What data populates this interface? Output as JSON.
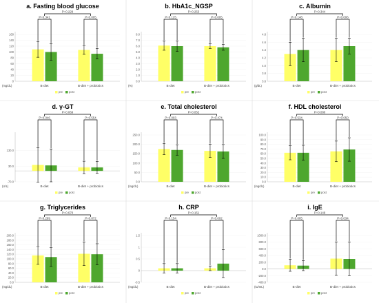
{
  "colors": {
    "pre": "#ffff66",
    "post": "#4ea72e"
  },
  "legend": {
    "pre": "pre",
    "post": "post"
  },
  "chart_data": [
    {
      "type": "bar",
      "title": "a. Fasting blood glucose",
      "unit": "(mg/dL)",
      "categories": [
        "B-diet",
        "B-diet + probiotics"
      ],
      "yticks": [
        "0",
        "20",
        "40",
        "60",
        "80",
        "100",
        "120",
        "140",
        "160"
      ],
      "ylim": [
        0,
        160
      ],
      "series": [
        {
          "name": "pre",
          "values": [
            109,
            107
          ],
          "errors": [
            27,
            15
          ]
        },
        {
          "name": "post",
          "values": [
            100,
            94
          ],
          "errors": [
            28,
            18
          ]
        }
      ],
      "pvalues": {
        "within": [
          "P=0.341",
          "P=0.005"
        ],
        "between": "P=0.229"
      }
    },
    {
      "type": "bar",
      "title": "b. HbA1c_NGSP",
      "unit": "(%)",
      "categories": [
        "B-diet",
        "B-diet + probiotics"
      ],
      "yticks": [
        "0.0",
        "1.0",
        "2.0",
        "3.0",
        "4.0",
        "5.0",
        "6.0",
        "7.0",
        "8.0"
      ],
      "ylim": [
        0,
        8
      ],
      "series": [
        {
          "name": "pre",
          "values": [
            6.1,
            6.0
          ],
          "errors": [
            0.8,
            0.4
          ]
        },
        {
          "name": "post",
          "values": [
            6.0,
            5.8
          ],
          "errors": [
            0.9,
            0.5
          ]
        }
      ],
      "pvalues": {
        "within": [
          "P=0.125",
          "P=0.005"
        ],
        "between": "P=0.253"
      }
    },
    {
      "type": "bar",
      "title": "c. Albumin",
      "unit": "(g/dL)",
      "categories": [
        "B-diet",
        "B-diet + probiotics"
      ],
      "yticks": [
        "3.6",
        "3.8",
        "4.0",
        "4.2",
        "4.4",
        "4.6",
        "4.8"
      ],
      "ylim": [
        3.6,
        4.8
      ],
      "series": [
        {
          "name": "pre",
          "values": [
            4.3,
            4.4
          ],
          "errors": [
            0.3,
            0.3
          ]
        },
        {
          "name": "post",
          "values": [
            4.4,
            4.5
          ],
          "errors": [
            0.3,
            0.2
          ]
        }
      ],
      "pvalues": {
        "within": [
          "P=0.148",
          "P=0.006"
        ],
        "between": "P=0.344"
      }
    },
    {
      "type": "bar",
      "title": "d. γ-GT",
      "unit": "(U/L)",
      "categories": [
        "B-diet",
        "B-diet + probiotics"
      ],
      "yticks": [
        "-70.0",
        "30.0",
        "130.0"
      ],
      "ylim": [
        -70,
        230
      ],
      "series": [
        {
          "name": "pre",
          "values": [
            38,
            22
          ],
          "errors": [
            110,
            40
          ]
        },
        {
          "name": "post",
          "values": [
            35,
            22
          ],
          "errors": [
            105,
            38
          ]
        }
      ],
      "pvalues": {
        "within": [
          "P=0.046",
          "P=0.554"
        ],
        "between": "P=0.069"
      }
    },
    {
      "type": "bar",
      "title": "e. Total cholesterol",
      "unit": "(mg/dL)",
      "categories": [
        "B-diet",
        "B-diet + probiotics"
      ],
      "yticks": [
        "0.0",
        "50.0",
        "100.0",
        "150.0",
        "200.0",
        "250.0"
      ],
      "ylim": [
        0,
        250
      ],
      "series": [
        {
          "name": "pre",
          "values": [
            175,
            165
          ],
          "errors": [
            30,
            35
          ]
        },
        {
          "name": "post",
          "values": [
            170,
            162
          ],
          "errors": [
            28,
            37
          ]
        }
      ],
      "pvalues": {
        "within": [
          "P=0.003",
          "P=0.474"
        ],
        "between": "P=0.052"
      }
    },
    {
      "type": "bar",
      "title": "f. HDL cholesterol",
      "unit": "(mg/dL)",
      "categories": [
        "B-diet",
        "B-diet + probiotics"
      ],
      "yticks": [
        "0.0",
        "10.0",
        "20.0",
        "30.0",
        "40.0",
        "50.0",
        "60.0",
        "70.0",
        "80.0",
        "90.0",
        "100.0"
      ],
      "ylim": [
        0,
        100
      ],
      "series": [
        {
          "name": "pre",
          "values": [
            62,
            65
          ],
          "errors": [
            15,
            22
          ]
        },
        {
          "name": "post",
          "values": [
            62,
            69
          ],
          "errors": [
            16,
            25
          ]
        }
      ],
      "pvalues": {
        "within": [
          "P=0.534",
          "P=0.050"
        ],
        "between": "P=0.080"
      }
    },
    {
      "type": "bar",
      "title": "g. Triglycerides",
      "unit": "(mg/dL)",
      "categories": [
        "B-diet",
        "B-diet + probiotics"
      ],
      "yticks": [
        "0.0",
        "20.0",
        "40.0",
        "60.0",
        "80.0",
        "100.0",
        "120.0",
        "140.0",
        "160.0",
        "180.0",
        "200.0"
      ],
      "ylim": [
        0,
        200
      ],
      "series": [
        {
          "name": "pre",
          "values": [
            115,
            122
          ],
          "errors": [
            38,
            50
          ]
        },
        {
          "name": "post",
          "values": [
            108,
            120
          ],
          "errors": [
            40,
            45
          ]
        }
      ],
      "pvalues": {
        "within": [
          "P=0.299",
          "P=0.872"
        ],
        "between": "P=0.670"
      }
    },
    {
      "type": "bar",
      "title": "h. CRP",
      "unit": "(mg/dL)",
      "categories": [
        "B-diet",
        "B-diet + probiotics"
      ],
      "yticks": [
        "-0.5",
        "0",
        "0.5",
        "1",
        "1.5"
      ],
      "ylim": [
        -0.5,
        1.5
      ],
      "series": [
        {
          "name": "pre",
          "values": [
            0.1,
            0.1
          ],
          "errors": [
            0.2,
            0.1
          ]
        },
        {
          "name": "post",
          "values": [
            0.1,
            0.3
          ],
          "errors": [
            0.2,
            0.6
          ]
        }
      ],
      "pvalues": {
        "within": [
          "P=0.154",
          "P=0.002"
        ],
        "between": "P=0.151"
      }
    },
    {
      "type": "bar",
      "title": "i. IgE",
      "unit": "(IU/mL)",
      "categories": [
        "B-diet",
        "B-diet + probiotics"
      ],
      "yticks": [
        "-400.0",
        "-200.0",
        "0.0",
        "200.0",
        "400.0",
        "600.0",
        "800.0",
        "1000.0"
      ],
      "ylim": [
        -400,
        1000
      ],
      "series": [
        {
          "name": "pre",
          "values": [
            110,
            310
          ],
          "errors": [
            180,
            500
          ]
        },
        {
          "name": "post",
          "values": [
            100,
            300
          ],
          "errors": [
            150,
            500
          ]
        }
      ],
      "pvalues": {
        "within": [
          "P=0.005",
          "P=0.034"
        ],
        "between": "P=0.149"
      }
    }
  ]
}
